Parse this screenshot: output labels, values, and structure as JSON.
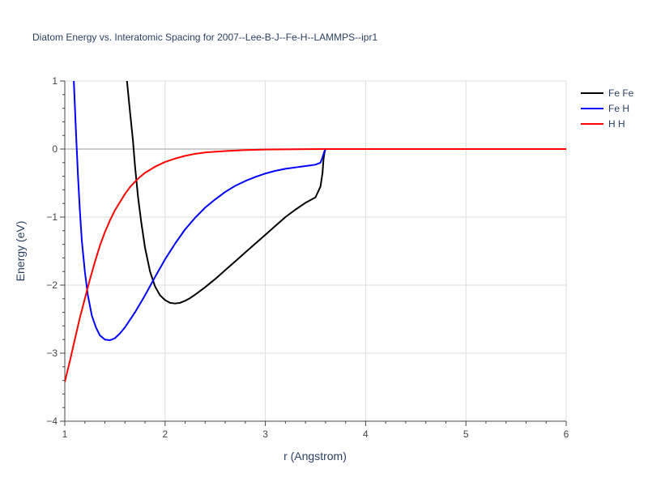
{
  "chart_data": {
    "type": "line",
    "title": "Diatom Energy vs. Interatomic Spacing for 2007--Lee-B-J--Fe-H--LAMMPS--ipr1",
    "xlabel": "r (Angstrom)",
    "ylabel": "Energy (eV)",
    "xlim": [
      1,
      6
    ],
    "ylim": [
      -4,
      1
    ],
    "x_ticks": [
      "1",
      "2",
      "3",
      "4",
      "5",
      "6"
    ],
    "y_ticks": [
      "1",
      "0",
      "−1",
      "−2",
      "−3",
      "−4"
    ],
    "x_tick_values": [
      1,
      2,
      3,
      4,
      5,
      6
    ],
    "y_tick_values": [
      1,
      0,
      -1,
      -2,
      -3,
      -4
    ],
    "minor_x_ticks": [
      1.2,
      1.4,
      1.6,
      1.8,
      2.2,
      2.4,
      2.6,
      2.8,
      3.2,
      3.4,
      3.6,
      3.8,
      4.2,
      4.4,
      4.6,
      4.8,
      5.2,
      5.4,
      5.6,
      5.8
    ],
    "minor_y_ticks": [
      0.8,
      0.6,
      0.4,
      0.2,
      -0.2,
      -0.4,
      -0.6,
      -0.8,
      -1.2,
      -1.4,
      -1.6,
      -1.8,
      -2.2,
      -2.4,
      -2.6,
      -2.8,
      -3.2,
      -3.4,
      -3.6,
      -3.8
    ],
    "grid": true,
    "legend_position": "top-right",
    "series": [
      {
        "name": "Fe Fe",
        "color": "#000000",
        "x": [
          1.62,
          1.65,
          1.68,
          1.7,
          1.73,
          1.76,
          1.8,
          1.85,
          1.9,
          1.95,
          2.0,
          2.05,
          2.1,
          2.15,
          2.2,
          2.25,
          2.3,
          2.4,
          2.5,
          2.6,
          2.7,
          2.8,
          2.9,
          3.0,
          3.1,
          3.2,
          3.3,
          3.4,
          3.5,
          3.55,
          3.57,
          3.58,
          3.59,
          3.6,
          3.62,
          3.7,
          4.0,
          4.5,
          5.0,
          5.5,
          6.0
        ],
        "y": [
          1.0,
          0.55,
          0.12,
          -0.25,
          -0.7,
          -1.05,
          -1.45,
          -1.8,
          -2.02,
          -2.15,
          -2.22,
          -2.26,
          -2.27,
          -2.26,
          -2.23,
          -2.19,
          -2.14,
          -2.03,
          -1.91,
          -1.78,
          -1.65,
          -1.52,
          -1.39,
          -1.26,
          -1.13,
          -1.0,
          -0.89,
          -0.79,
          -0.71,
          -0.55,
          -0.35,
          -0.15,
          -0.05,
          0.0,
          0.0,
          0.0,
          0.0,
          0.0,
          0.0,
          0.0,
          0.0
        ]
      },
      {
        "name": "Fe H",
        "color": "#0000ff",
        "x": [
          1.09,
          1.11,
          1.13,
          1.15,
          1.17,
          1.2,
          1.23,
          1.27,
          1.31,
          1.35,
          1.4,
          1.45,
          1.5,
          1.55,
          1.6,
          1.7,
          1.8,
          1.9,
          2.0,
          2.1,
          2.2,
          2.3,
          2.4,
          2.5,
          2.6,
          2.7,
          2.8,
          2.9,
          3.0,
          3.1,
          3.2,
          3.3,
          3.4,
          3.5,
          3.55,
          3.57,
          3.59,
          3.6,
          3.7,
          4.0,
          4.5,
          5.0,
          5.5,
          6.0
        ],
        "y": [
          1.0,
          0.3,
          -0.35,
          -0.9,
          -1.35,
          -1.8,
          -2.15,
          -2.45,
          -2.62,
          -2.74,
          -2.8,
          -2.81,
          -2.78,
          -2.71,
          -2.62,
          -2.4,
          -2.15,
          -1.88,
          -1.62,
          -1.39,
          -1.18,
          -1.01,
          -0.86,
          -0.74,
          -0.63,
          -0.54,
          -0.47,
          -0.41,
          -0.36,
          -0.32,
          -0.29,
          -0.27,
          -0.25,
          -0.23,
          -0.2,
          -0.12,
          -0.03,
          0.0,
          0.0,
          0.0,
          0.0,
          0.0,
          0.0,
          0.0
        ]
      },
      {
        "name": "H H",
        "color": "#ff0000",
        "x": [
          1.0,
          1.05,
          1.1,
          1.15,
          1.2,
          1.25,
          1.3,
          1.35,
          1.4,
          1.45,
          1.5,
          1.55,
          1.6,
          1.65,
          1.7,
          1.75,
          1.8,
          1.9,
          2.0,
          2.1,
          2.2,
          2.3,
          2.4,
          2.6,
          2.8,
          3.0,
          3.2,
          3.4,
          3.6,
          4.0,
          4.5,
          5.0,
          5.5,
          6.0
        ],
        "y": [
          -3.42,
          -3.12,
          -2.8,
          -2.48,
          -2.2,
          -1.92,
          -1.66,
          -1.42,
          -1.22,
          -1.05,
          -0.9,
          -0.78,
          -0.66,
          -0.56,
          -0.48,
          -0.41,
          -0.35,
          -0.26,
          -0.19,
          -0.14,
          -0.1,
          -0.07,
          -0.05,
          -0.03,
          -0.015,
          -0.008,
          -0.004,
          -0.002,
          0.0,
          0.0,
          0.0,
          0.0,
          0.0,
          0.0
        ]
      }
    ]
  }
}
